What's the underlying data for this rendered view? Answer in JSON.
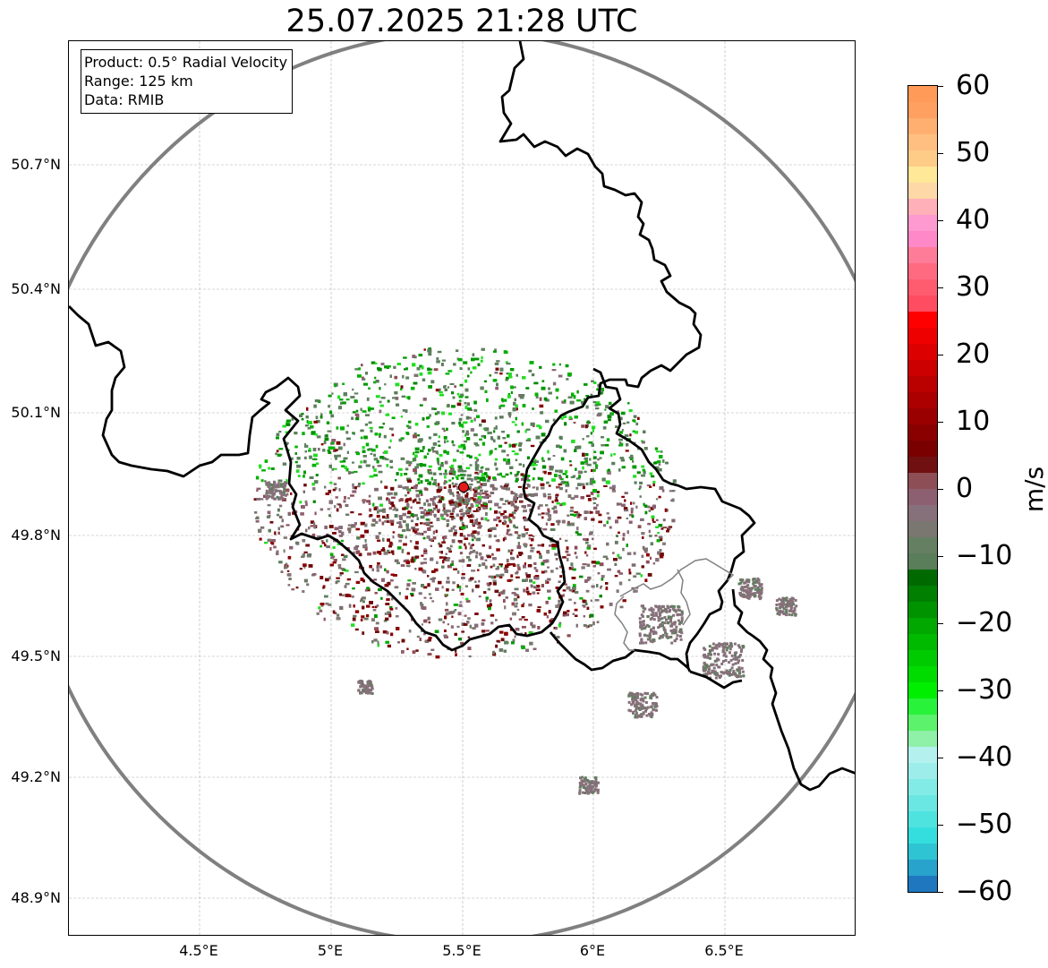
{
  "title": "25.07.2025 21:28 UTC",
  "infobox": {
    "product": "Product: 0.5° Radial Velocity",
    "range": "Range: 125 km",
    "data": "Data: RMIB"
  },
  "lat_ticks": [
    "50.7°N",
    "50.4°N",
    "50.1°N",
    "49.8°N",
    "49.5°N",
    "49.2°N",
    "48.9°N"
  ],
  "lon_ticks": [
    "4.5°E",
    "5°E",
    "5.5°E",
    "6°E",
    "6.5°E"
  ],
  "colorbar": {
    "unit": "m/s",
    "ticks": [
      "60",
      "50",
      "40",
      "30",
      "20",
      "10",
      "0",
      "−10",
      "−20",
      "−30",
      "−40",
      "−50",
      "−60"
    ],
    "min": -60,
    "max": 60,
    "bands": [
      "#1f77c0",
      "#27a3cc",
      "#2ec4d4",
      "#35dede",
      "#4fe3e0",
      "#6ae7e3",
      "#83ebe6",
      "#9deeea",
      "#b4f1ee",
      "#8ff0a8",
      "#5cf26b",
      "#28f23a",
      "#00ee00",
      "#00dc00",
      "#00cb00",
      "#00ba00",
      "#00a800",
      "#009300",
      "#007f00",
      "#006a00",
      "#5a7d5a",
      "#657f62",
      "#7a7670",
      "#86707a",
      "#8c6070",
      "#8e4e56",
      "#701010",
      "#7a0000",
      "#8a0000",
      "#9b0000",
      "#ab0000",
      "#bb0000",
      "#cc0000",
      "#dd0000",
      "#ee0000",
      "#ff0000",
      "#ff4c60",
      "#ff5c70",
      "#ff6a80",
      "#ff7c98",
      "#ff88c8",
      "#ff9ad0",
      "#ffb0b8",
      "#ffd8a8",
      "#ffe898",
      "#ffcc88",
      "#ffbf80",
      "#ffb070",
      "#ffa060",
      "#ff9a58"
    ]
  },
  "map": {
    "radar_site": "radar-site",
    "range_ring_color": "#808080",
    "border_color": "#000000"
  }
}
